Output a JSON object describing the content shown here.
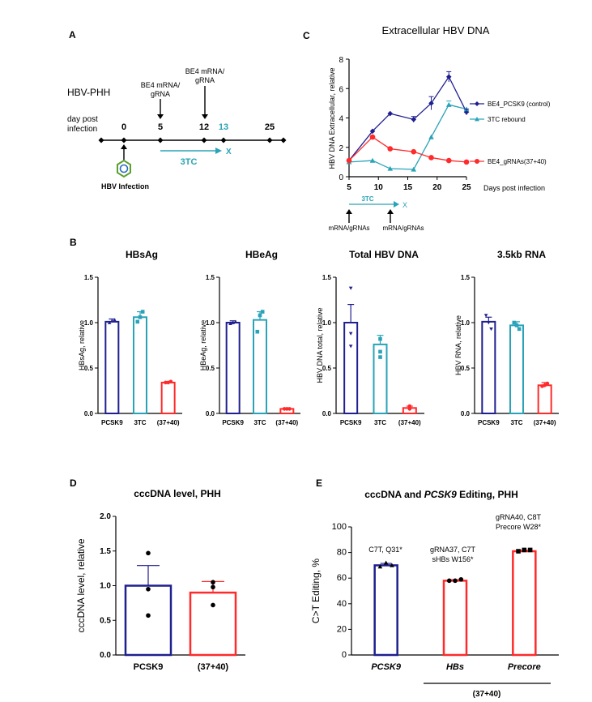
{
  "colors": {
    "pcsk9": "#1f1f8f",
    "tc3": "#2aa3b8",
    "gRNA": "#ff2a2a",
    "axis": "#000000"
  },
  "panelA": {
    "label": "A",
    "title": "HBV-PHH",
    "axis_label_line1": "day post",
    "axis_label_line2": "infection",
    "days": [
      "0",
      "5",
      "12",
      "13",
      "25"
    ],
    "event1_line1": "BE4 mRNA/",
    "event1_line2": "gRNA",
    "event2_line1": "BE4 mRNA/",
    "event2_line2": "gRNA",
    "treatment": "3TC",
    "stop_mark": "X",
    "infection_label": "HBV Infection"
  },
  "chart_data": [
    {
      "id": "C",
      "panel_label": "C",
      "type": "line",
      "title": "Extracellular HBV DNA",
      "xlabel": "Days post infection",
      "ylabel": "HBV DNA Extracellular, relative",
      "xlim": [
        5,
        25
      ],
      "ylim": [
        0,
        8
      ],
      "xticks": [
        "5",
        "10",
        "15",
        "20",
        "25"
      ],
      "yticks": [
        "0",
        "2",
        "4",
        "6",
        "8"
      ],
      "series": [
        {
          "name": "BE4_PCSK9 (control)",
          "x": [
            5,
            9,
            12,
            16,
            19,
            22,
            25
          ],
          "values": [
            1.1,
            3.1,
            4.3,
            3.9,
            5.0,
            6.8,
            4.4
          ]
        },
        {
          "name": "3TC rebound",
          "x": [
            5,
            9,
            12,
            16,
            19,
            22,
            25
          ],
          "values": [
            1.0,
            1.1,
            0.55,
            0.5,
            2.7,
            4.9,
            4.6
          ]
        },
        {
          "name": "BE4_gRNAs(37+40)",
          "x": [
            5,
            9,
            12,
            16,
            19,
            22,
            25
          ],
          "values": [
            1.1,
            2.7,
            1.9,
            1.7,
            1.3,
            1.1,
            1.0
          ]
        }
      ],
      "annotations": {
        "treatment": "3TC",
        "stop_mark": "X",
        "event1": "mRNA/gRNAs",
        "event2": "mRNA/gRNAs"
      }
    },
    {
      "id": "B1",
      "panel_label": "B",
      "type": "bar",
      "title": "HBsAg",
      "ylabel": "HBsAg, relative",
      "categories": [
        "PCSK9",
        "3TC",
        "(37+40)"
      ],
      "values": [
        1.01,
        1.06,
        0.34
      ],
      "points": [
        [
          1.0,
          1.02,
          1.03
        ],
        [
          1.01,
          1.06,
          1.12
        ],
        [
          0.34,
          0.34,
          0.35
        ]
      ],
      "ylim": [
        0,
        1.5
      ],
      "yticks": [
        "0.0",
        "0.5",
        "1.0",
        "1.5"
      ]
    },
    {
      "id": "B2",
      "type": "bar",
      "title": "HBeAg",
      "ylabel": "HBeAg, relative",
      "categories": [
        "PCSK9",
        "3TC",
        "(37+40)"
      ],
      "values": [
        1.0,
        1.03,
        0.05
      ],
      "points": [
        [
          0.99,
          1.0,
          1.01
        ],
        [
          0.9,
          1.08,
          1.12
        ],
        [
          0.05,
          0.05,
          0.05
        ]
      ],
      "ylim": [
        0,
        1.5
      ],
      "yticks": [
        "0.0",
        "0.5",
        "1.0",
        "1.5"
      ]
    },
    {
      "id": "B3",
      "type": "bar",
      "title": "Total HBV DNA",
      "ylabel": "HBV DNA total, relative",
      "categories": [
        "PCSK9",
        "3TC",
        "(37+40)"
      ],
      "values": [
        1.0,
        0.76,
        0.06
      ],
      "points": [
        [
          1.38,
          0.88,
          0.74
        ],
        [
          0.82,
          0.68,
          0.62
        ],
        [
          0.05,
          0.06,
          0.08
        ]
      ],
      "ylim": [
        0,
        1.5
      ],
      "yticks": [
        "0.0",
        "0.5",
        "1.0",
        "1.5"
      ]
    },
    {
      "id": "B4",
      "type": "bar",
      "title": "3.5kb RNA",
      "ylabel": "HBV RNA, relative",
      "categories": [
        "PCSK9",
        "3TC",
        "(37+40)"
      ],
      "values": [
        1.01,
        0.97,
        0.31
      ],
      "points": [
        [
          1.08,
          1.0,
          0.93
        ],
        [
          1.0,
          0.97,
          0.93
        ],
        [
          0.3,
          0.31,
          0.33
        ]
      ],
      "ylim": [
        0,
        1.5
      ],
      "yticks": [
        "0.0",
        "0.5",
        "1.0",
        "1.5"
      ]
    },
    {
      "id": "D",
      "panel_label": "D",
      "type": "bar",
      "title": "cccDNA level, PHH",
      "ylabel": "cccDNA level, relative",
      "categories": [
        "PCSK9",
        "(37+40)"
      ],
      "values": [
        1.0,
        0.9
      ],
      "points": [
        [
          1.47,
          0.95,
          0.57
        ],
        [
          1.05,
          0.98,
          0.72
        ]
      ],
      "errors": [
        0.29,
        0.16
      ],
      "ylim": [
        0,
        2.0
      ],
      "yticks": [
        "0.0",
        "0.5",
        "1.0",
        "1.5",
        "2.0"
      ]
    },
    {
      "id": "E",
      "panel_label": "E",
      "type": "bar",
      "title_prefix": "cccDNA and ",
      "title_italic": "PCSK9",
      "title_suffix": " Editing, PHH",
      "ylabel": "C>T Editing, %",
      "categories": [
        "PCSK9",
        "HBs",
        "Precore"
      ],
      "values": [
        70,
        58,
        81
      ],
      "points": [
        [
          69,
          72,
          70
        ],
        [
          58,
          58,
          59
        ],
        [
          81,
          82,
          82
        ]
      ],
      "ylim": [
        0,
        100
      ],
      "yticks": [
        "0",
        "20",
        "40",
        "60",
        "80",
        "100"
      ],
      "bar_notes": [
        [
          "C7T, Q31*"
        ],
        [
          "gRNA37, C7T",
          "sHBs W156*"
        ],
        [
          "gRNA40, C8T",
          "Precore W28*"
        ]
      ],
      "group_label": "(37+40)"
    }
  ]
}
